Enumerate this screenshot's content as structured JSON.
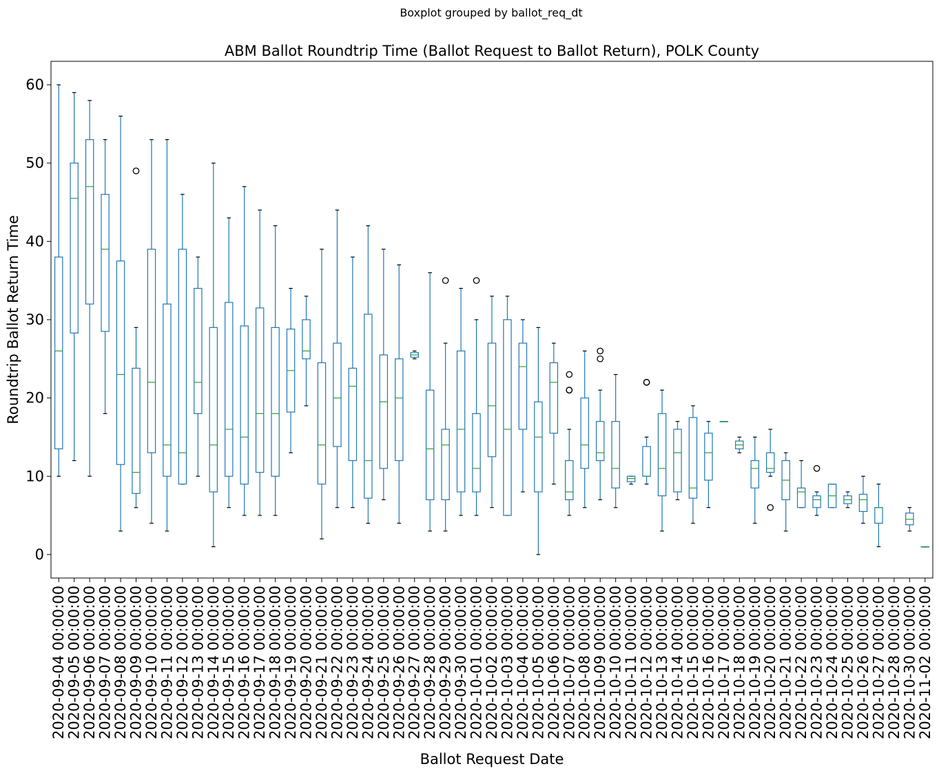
{
  "suptitle": "Boxplot grouped by ballot_req_dt",
  "chart_data": {
    "type": "boxplot",
    "title": "ABM Ballot Roundtrip Time (Ballot Request to Ballot Return), POLK County",
    "xlabel": "Ballot Request Date",
    "ylabel": "Roundtrip Ballot Return Time",
    "ylim": [
      -3,
      63
    ],
    "yticks": [
      0,
      10,
      20,
      30,
      40,
      50,
      60
    ],
    "grid": false,
    "colors": {
      "box": "#1f77b4",
      "median": "#2ca02c",
      "flier": "#000000"
    },
    "categories": [
      "2020-09-04 00:00:00",
      "2020-09-05 00:00:00",
      "2020-09-06 00:00:00",
      "2020-09-07 00:00:00",
      "2020-09-08 00:00:00",
      "2020-09-09 00:00:00",
      "2020-09-10 00:00:00",
      "2020-09-11 00:00:00",
      "2020-09-12 00:00:00",
      "2020-09-13 00:00:00",
      "2020-09-14 00:00:00",
      "2020-09-15 00:00:00",
      "2020-09-16 00:00:00",
      "2020-09-17 00:00:00",
      "2020-09-18 00:00:00",
      "2020-09-19 00:00:00",
      "2020-09-20 00:00:00",
      "2020-09-21 00:00:00",
      "2020-09-22 00:00:00",
      "2020-09-23 00:00:00",
      "2020-09-24 00:00:00",
      "2020-09-25 00:00:00",
      "2020-09-26 00:00:00",
      "2020-09-27 00:00:00",
      "2020-09-28 00:00:00",
      "2020-09-29 00:00:00",
      "2020-09-30 00:00:00",
      "2020-10-01 00:00:00",
      "2020-10-02 00:00:00",
      "2020-10-03 00:00:00",
      "2020-10-04 00:00:00",
      "2020-10-05 00:00:00",
      "2020-10-06 00:00:00",
      "2020-10-07 00:00:00",
      "2020-10-08 00:00:00",
      "2020-10-09 00:00:00",
      "2020-10-10 00:00:00",
      "2020-10-11 00:00:00",
      "2020-10-12 00:00:00",
      "2020-10-13 00:00:00",
      "2020-10-14 00:00:00",
      "2020-10-15 00:00:00",
      "2020-10-16 00:00:00",
      "2020-10-17 00:00:00",
      "2020-10-18 00:00:00",
      "2020-10-19 00:00:00",
      "2020-10-20 00:00:00",
      "2020-10-21 00:00:00",
      "2020-10-22 00:00:00",
      "2020-10-23 00:00:00",
      "2020-10-24 00:00:00",
      "2020-10-25 00:00:00",
      "2020-10-26 00:00:00",
      "2020-10-27 00:00:00",
      "2020-10-28 00:00:00",
      "2020-10-30 00:00:00",
      "2020-11-02 00:00:00"
    ],
    "boxes": [
      {
        "whislo": 10,
        "q1": 13.5,
        "med": 26,
        "q3": 38,
        "whishi": 60,
        "fliers": []
      },
      {
        "whislo": 12,
        "q1": 28.3,
        "med": 45.5,
        "q3": 50,
        "whishi": 59,
        "fliers": []
      },
      {
        "whislo": 10,
        "q1": 32,
        "med": 47,
        "q3": 53,
        "whishi": 58,
        "fliers": []
      },
      {
        "whislo": 18,
        "q1": 28.5,
        "med": 39,
        "q3": 46,
        "whishi": 53,
        "fliers": []
      },
      {
        "whislo": 3,
        "q1": 11.5,
        "med": 23,
        "q3": 37.5,
        "whishi": 56,
        "fliers": []
      },
      {
        "whislo": 6,
        "q1": 7.8,
        "med": 10.5,
        "q3": 23.8,
        "whishi": 29,
        "fliers": [
          49
        ]
      },
      {
        "whislo": 4,
        "q1": 13,
        "med": 22,
        "q3": 39,
        "whishi": 53,
        "fliers": []
      },
      {
        "whislo": 3,
        "q1": 10,
        "med": 14,
        "q3": 32,
        "whishi": 53,
        "fliers": []
      },
      {
        "whislo": 9,
        "q1": 9,
        "med": 13,
        "q3": 39,
        "whishi": 46,
        "fliers": []
      },
      {
        "whislo": 10,
        "q1": 18,
        "med": 22,
        "q3": 34,
        "whishi": 38,
        "fliers": []
      },
      {
        "whislo": 1,
        "q1": 8,
        "med": 14,
        "q3": 29,
        "whishi": 50,
        "fliers": []
      },
      {
        "whislo": 6,
        "q1": 10,
        "med": 16,
        "q3": 32.2,
        "whishi": 43,
        "fliers": []
      },
      {
        "whislo": 5,
        "q1": 9,
        "med": 15,
        "q3": 29.2,
        "whishi": 47,
        "fliers": []
      },
      {
        "whislo": 5,
        "q1": 10.5,
        "med": 18,
        "q3": 31.5,
        "whishi": 44,
        "fliers": []
      },
      {
        "whislo": 5,
        "q1": 10,
        "med": 18,
        "q3": 29,
        "whishi": 42,
        "fliers": []
      },
      {
        "whislo": 13,
        "q1": 18.2,
        "med": 23.5,
        "q3": 28.8,
        "whishi": 34,
        "fliers": []
      },
      {
        "whislo": 19,
        "q1": 25,
        "med": 26,
        "q3": 30,
        "whishi": 33,
        "fliers": []
      },
      {
        "whislo": 2,
        "q1": 9,
        "med": 14,
        "q3": 24.5,
        "whishi": 39,
        "fliers": []
      },
      {
        "whislo": 6,
        "q1": 13.8,
        "med": 20,
        "q3": 27,
        "whishi": 44,
        "fliers": []
      },
      {
        "whislo": 6,
        "q1": 12,
        "med": 21.5,
        "q3": 23.8,
        "whishi": 38,
        "fliers": []
      },
      {
        "whislo": 4,
        "q1": 7.2,
        "med": 12,
        "q3": 30.7,
        "whishi": 42,
        "fliers": []
      },
      {
        "whislo": 7,
        "q1": 11,
        "med": 19.5,
        "q3": 25.5,
        "whishi": 39,
        "fliers": []
      },
      {
        "whislo": 4,
        "q1": 12,
        "med": 20,
        "q3": 25,
        "whishi": 37,
        "fliers": []
      },
      {
        "whislo": 25,
        "q1": 25.2,
        "med": 25.5,
        "q3": 25.8,
        "whishi": 26,
        "fliers": []
      },
      {
        "whislo": 3,
        "q1": 7,
        "med": 13.5,
        "q3": 21,
        "whishi": 36,
        "fliers": []
      },
      {
        "whislo": 3,
        "q1": 7,
        "med": 14,
        "q3": 16,
        "whishi": 27,
        "fliers": [
          35
        ]
      },
      {
        "whislo": 5,
        "q1": 8,
        "med": 16,
        "q3": 26,
        "whishi": 34,
        "fliers": []
      },
      {
        "whislo": 5,
        "q1": 8,
        "med": 11,
        "q3": 18,
        "whishi": 30,
        "fliers": [
          35
        ]
      },
      {
        "whislo": 6,
        "q1": 12.5,
        "med": 19,
        "q3": 27,
        "whishi": 33,
        "fliers": []
      },
      {
        "whislo": 5,
        "q1": 5,
        "med": 16,
        "q3": 30,
        "whishi": 33,
        "fliers": []
      },
      {
        "whislo": 8,
        "q1": 16,
        "med": 24,
        "q3": 27,
        "whishi": 30,
        "fliers": []
      },
      {
        "whislo": 0,
        "q1": 8,
        "med": 15,
        "q3": 19.5,
        "whishi": 29,
        "fliers": []
      },
      {
        "whislo": 9,
        "q1": 15.5,
        "med": 22,
        "q3": 24.5,
        "whishi": 27,
        "fliers": []
      },
      {
        "whislo": 5,
        "q1": 7,
        "med": 8,
        "q3": 12,
        "whishi": 16,
        "fliers": [
          21,
          21,
          23
        ]
      },
      {
        "whislo": 6,
        "q1": 11,
        "med": 14,
        "q3": 20,
        "whishi": 26,
        "fliers": []
      },
      {
        "whislo": 7,
        "q1": 12,
        "med": 13,
        "q3": 17,
        "whishi": 21,
        "fliers": [
          25,
          26
        ]
      },
      {
        "whislo": 6,
        "q1": 8.5,
        "med": 11,
        "q3": 17,
        "whishi": 23,
        "fliers": []
      },
      {
        "whislo": 9,
        "q1": 9.3,
        "med": 9.7,
        "q3": 10,
        "whishi": 10,
        "fliers": []
      },
      {
        "whislo": 9,
        "q1": 10,
        "med": 10,
        "q3": 13.8,
        "whishi": 15,
        "fliers": [
          22,
          22
        ]
      },
      {
        "whislo": 3,
        "q1": 7.5,
        "med": 11,
        "q3": 18,
        "whishi": 21,
        "fliers": []
      },
      {
        "whislo": 7,
        "q1": 8,
        "med": 13,
        "q3": 16,
        "whishi": 17,
        "fliers": []
      },
      {
        "whislo": 4,
        "q1": 7.2,
        "med": 8.5,
        "q3": 17.5,
        "whishi": 19,
        "fliers": []
      },
      {
        "whislo": 6,
        "q1": 9.5,
        "med": 13,
        "q3": 15.5,
        "whishi": 17,
        "fliers": []
      },
      {
        "whislo": 17,
        "q1": 17,
        "med": 17,
        "q3": 17,
        "whishi": 17,
        "fliers": []
      },
      {
        "whislo": 13,
        "q1": 13.5,
        "med": 14,
        "q3": 14.5,
        "whishi": 15,
        "fliers": []
      },
      {
        "whislo": 4,
        "q1": 8.5,
        "med": 11,
        "q3": 12,
        "whishi": 15,
        "fliers": []
      },
      {
        "whislo": 10,
        "q1": 10.5,
        "med": 11,
        "q3": 13,
        "whishi": 16,
        "fliers": [
          6
        ]
      },
      {
        "whislo": 3,
        "q1": 7,
        "med": 9.5,
        "q3": 12,
        "whishi": 13,
        "fliers": []
      },
      {
        "whislo": 6,
        "q1": 6,
        "med": 8,
        "q3": 8.5,
        "whishi": 12,
        "fliers": []
      },
      {
        "whislo": 5,
        "q1": 6,
        "med": 7,
        "q3": 7.5,
        "whishi": 8,
        "fliers": [
          11
        ]
      },
      {
        "whislo": 6,
        "q1": 6,
        "med": 7.5,
        "q3": 9,
        "whishi": 9,
        "fliers": []
      },
      {
        "whislo": 6,
        "q1": 6.5,
        "med": 7,
        "q3": 7.5,
        "whishi": 8,
        "fliers": []
      },
      {
        "whislo": 4,
        "q1": 5.5,
        "med": 7,
        "q3": 7.7,
        "whishi": 10,
        "fliers": []
      },
      {
        "whislo": 1,
        "q1": 4,
        "med": 6,
        "q3": 6,
        "whishi": 9,
        "fliers": []
      },
      {
        "whislo": null,
        "q1": null,
        "med": null,
        "q3": null,
        "whishi": null,
        "fliers": []
      },
      {
        "whislo": 3,
        "q1": 3.8,
        "med": 4.5,
        "q3": 5.3,
        "whishi": 6,
        "fliers": []
      },
      {
        "whislo": 1,
        "q1": 1,
        "med": 1,
        "q3": 1,
        "whishi": 1,
        "fliers": []
      }
    ]
  }
}
